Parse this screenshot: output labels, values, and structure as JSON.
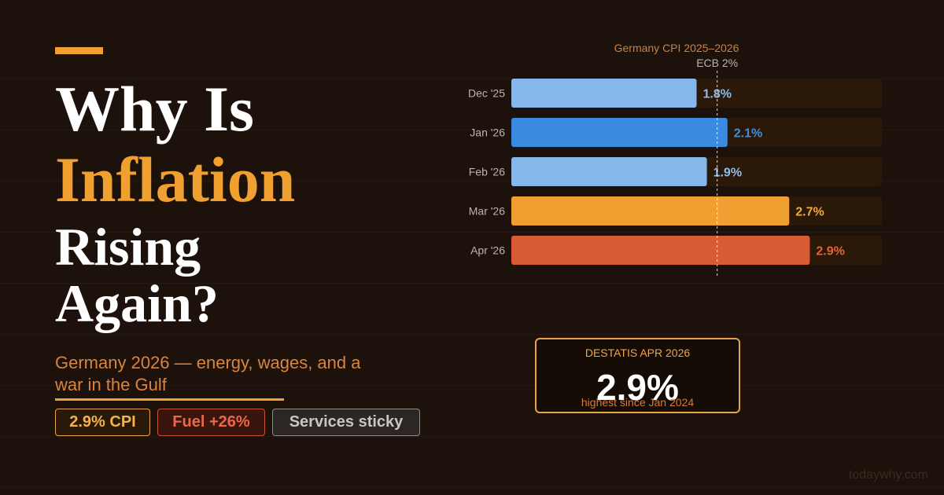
{
  "headline": {
    "line1": "Why Is",
    "line2": "Inflation",
    "line3": "Rising",
    "line4": "Again?"
  },
  "subtitle": "Germany 2026 — energy, wages, and a war in the Gulf",
  "pills": [
    {
      "label": "2.9% CPI"
    },
    {
      "label": "Fuel +26%"
    },
    {
      "label": "Services sticky"
    }
  ],
  "callout": {
    "label": "DESTATIS APR 2026",
    "value": "2.9%",
    "note": "highest since Jan 2024"
  },
  "site": "todaywhy.com",
  "colors": {
    "background": "#1d110b",
    "accent": "#f0a030",
    "bar_low": "#85b7ea",
    "bar_mid": "#3a8ae0",
    "bar_orange": "#f0a030",
    "bar_red": "#d95b33",
    "track": "#2a1808"
  },
  "chart_data": {
    "type": "bar",
    "orientation": "horizontal",
    "title": "Germany CPI 2025–2026",
    "categories": [
      "Dec '25",
      "Jan '26",
      "Feb '26",
      "Mar '26",
      "Apr '26"
    ],
    "values": [
      1.8,
      2.1,
      1.9,
      2.7,
      2.9
    ],
    "value_labels": [
      "1.8%",
      "2.1%",
      "1.9%",
      "2.7%",
      "2.9%"
    ],
    "bar_colors": [
      "#85b7ea",
      "#3a8ae0",
      "#85b7ea",
      "#f0a030",
      "#d95b33"
    ],
    "label_colors": [
      "#8fbdea",
      "#3d8ee0",
      "#8fbdea",
      "#f3a93c",
      "#e0643c"
    ],
    "reference_line": {
      "value": 2.0,
      "label": "ECB 2%"
    },
    "xlim": [
      0,
      3.6
    ],
    "grid": false
  }
}
